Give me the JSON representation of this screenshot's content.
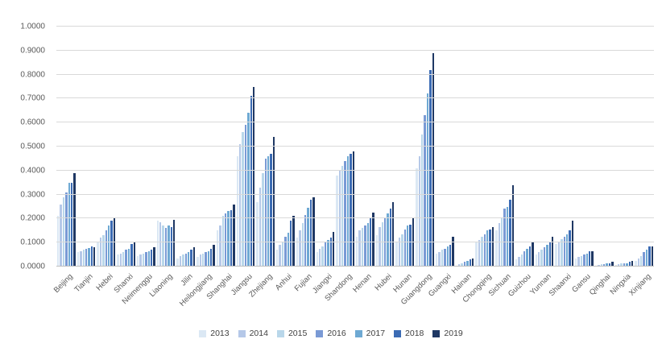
{
  "chart_data": {
    "type": "bar",
    "title": "",
    "xlabel": "",
    "ylabel": "",
    "ylim": [
      0,
      1.0
    ],
    "ytick_step": 0.1,
    "ytick_labels": [
      "0.0000",
      "0.1000",
      "0.2000",
      "0.3000",
      "0.4000",
      "0.5000",
      "0.6000",
      "0.7000",
      "0.8000",
      "0.9000",
      "1.0000"
    ],
    "grid": true,
    "legend_position": "bottom",
    "categories": [
      "Beijing",
      "Tianjin",
      "Hebei",
      "Shanxi",
      "Neimenggu",
      "Liaoning",
      "Jilin",
      "Heilongjiang",
      "Shanghai",
      "Jiangsu",
      "Zhejiang",
      "Anhui",
      "Fujian",
      "Jiangxi",
      "Shandong",
      "Henan",
      "Hubei",
      "Hunan",
      "Guangdong",
      "Guangxi",
      "Hainan",
      "Chongqing",
      "Sichuan",
      "Guizhou",
      "Yunnan",
      "Shaanxi",
      "Gansu",
      "Qinghai",
      "Ningxia",
      "Xinjiang"
    ],
    "series": [
      {
        "name": "2013",
        "color": "#dbe8f4",
        "values": [
          0.21,
          0.06,
          0.1,
          0.05,
          0.045,
          0.19,
          0.035,
          0.04,
          0.15,
          0.46,
          0.27,
          0.07,
          0.12,
          0.06,
          0.38,
          0.125,
          0.13,
          0.1,
          0.41,
          0.055,
          0.005,
          0.1,
          0.15,
          0.03,
          0.05,
          0.095,
          0.035,
          0.005,
          0.008,
          0.025
        ]
      },
      {
        "name": "2014",
        "color": "#b5c8e8",
        "values": [
          0.26,
          0.065,
          0.12,
          0.055,
          0.05,
          0.185,
          0.045,
          0.05,
          0.17,
          0.51,
          0.33,
          0.09,
          0.15,
          0.075,
          0.4,
          0.15,
          0.165,
          0.12,
          0.46,
          0.06,
          0.01,
          0.11,
          0.18,
          0.04,
          0.06,
          0.105,
          0.04,
          0.008,
          0.01,
          0.035
        ]
      },
      {
        "name": "2015",
        "color": "#b9d7ea",
        "values": [
          0.29,
          0.07,
          0.13,
          0.06,
          0.055,
          0.17,
          0.05,
          0.055,
          0.21,
          0.56,
          0.39,
          0.1,
          0.18,
          0.085,
          0.42,
          0.16,
          0.185,
          0.135,
          0.55,
          0.07,
          0.015,
          0.125,
          0.2,
          0.05,
          0.07,
          0.115,
          0.045,
          0.01,
          0.012,
          0.045
        ]
      },
      {
        "name": "2016",
        "color": "#7a9ad5",
        "values": [
          0.31,
          0.075,
          0.15,
          0.07,
          0.06,
          0.16,
          0.055,
          0.06,
          0.22,
          0.59,
          0.45,
          0.125,
          0.215,
          0.1,
          0.44,
          0.17,
          0.2,
          0.155,
          0.63,
          0.075,
          0.02,
          0.135,
          0.24,
          0.065,
          0.08,
          0.125,
          0.05,
          0.01,
          0.015,
          0.06
        ]
      },
      {
        "name": "2017",
        "color": "#6ea9d3",
        "values": [
          0.35,
          0.078,
          0.17,
          0.075,
          0.065,
          0.17,
          0.06,
          0.065,
          0.23,
          0.64,
          0.46,
          0.14,
          0.245,
          0.11,
          0.46,
          0.18,
          0.22,
          0.17,
          0.72,
          0.085,
          0.025,
          0.15,
          0.25,
          0.075,
          0.09,
          0.135,
          0.055,
          0.012,
          0.015,
          0.07
        ]
      },
      {
        "name": "2018",
        "color": "#3b6bb4",
        "values": [
          0.35,
          0.085,
          0.19,
          0.095,
          0.07,
          0.165,
          0.07,
          0.075,
          0.235,
          0.71,
          0.47,
          0.19,
          0.28,
          0.12,
          0.47,
          0.2,
          0.24,
          0.175,
          0.82,
          0.09,
          0.03,
          0.155,
          0.28,
          0.085,
          0.1,
          0.15,
          0.065,
          0.015,
          0.02,
          0.085
        ]
      },
      {
        "name": "2019",
        "color": "#1f3864",
        "values": [
          0.39,
          0.082,
          0.2,
          0.1,
          0.08,
          0.195,
          0.08,
          0.09,
          0.26,
          0.75,
          0.54,
          0.21,
          0.29,
          0.145,
          0.48,
          0.225,
          0.27,
          0.205,
          0.89,
          0.125,
          0.035,
          0.165,
          0.34,
          0.105,
          0.125,
          0.19,
          0.065,
          0.02,
          0.025,
          0.085
        ]
      }
    ]
  }
}
